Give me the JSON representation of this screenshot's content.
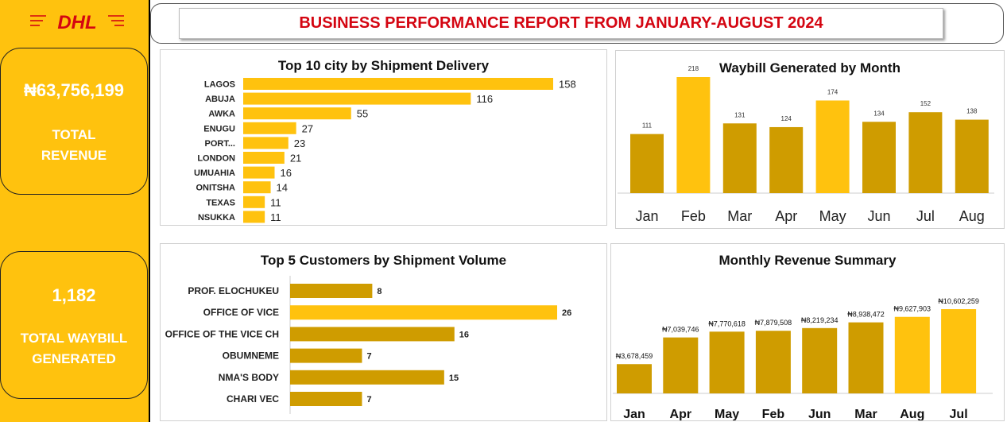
{
  "brand": {
    "logo_text": "DHL"
  },
  "header": {
    "title": "BUSINESS PERFORMANCE REPORT FROM JANUARY-AUGUST 2024"
  },
  "kpis": {
    "revenue_value": "₦63,756,199",
    "revenue_label_1": "TOTAL",
    "revenue_label_2": "REVENUE",
    "waybill_value": "1,182",
    "waybill_label_1": "TOTAL WAYBILL",
    "waybill_label_2": "GENERATED"
  },
  "colors": {
    "gold": "#FFC20E",
    "dark_gold": "#CF9C00",
    "red": "#D40511"
  },
  "chart_data": [
    {
      "id": "cities",
      "type": "bar",
      "orientation": "horizontal",
      "title": "Top 10 city by Shipment Delivery",
      "categories": [
        "LAGOS",
        "ABUJA",
        "AWKA",
        "ENUGU",
        "PORT...",
        "LONDON",
        "UMUAHIA",
        "ONITSHA",
        "TEXAS",
        "NSUKKA"
      ],
      "values": [
        158,
        116,
        55,
        27,
        23,
        21,
        16,
        14,
        11,
        11
      ],
      "labels": [
        "158",
        "116",
        "55",
        "27",
        "23",
        "21",
        "16",
        "14",
        "11",
        "11"
      ],
      "bar_color": "#FFC20E"
    },
    {
      "id": "waybill",
      "type": "bar",
      "title": "Waybill Generated by Month",
      "categories": [
        "Jan",
        "Feb",
        "Mar",
        "Apr",
        "May",
        "Jun",
        "Jul",
        "Aug"
      ],
      "values": [
        111,
        218,
        131,
        124,
        174,
        134,
        152,
        138
      ],
      "labels": [
        "111",
        "218",
        "131",
        "124",
        "174",
        "134",
        "152",
        "138"
      ],
      "highlight": [
        false,
        true,
        false,
        false,
        true,
        false,
        false,
        false
      ]
    },
    {
      "id": "customers",
      "type": "bar",
      "orientation": "horizontal",
      "title": "Top 5 Customers by Shipment Volume",
      "categories": [
        "PROF. ELOCHUKEU",
        "OFFICE OF VICE",
        "OFFICE OF THE VICE CH",
        "OBUMNEME",
        "NMA'S BODY",
        "CHARI VEC"
      ],
      "values": [
        8,
        26,
        16,
        7,
        15,
        7
      ],
      "labels": [
        "8",
        "26",
        "16",
        "7",
        "15",
        "7"
      ],
      "highlight": [
        false,
        true,
        false,
        false,
        false,
        false
      ]
    },
    {
      "id": "revenue",
      "type": "bar",
      "title": "Monthly Revenue Summary",
      "categories": [
        "Jan",
        "Apr",
        "May",
        "Feb",
        "Jun",
        "Mar",
        "Aug",
        "Jul"
      ],
      "values": [
        3678459,
        7039746,
        7770618,
        7879508,
        8219234,
        8938472,
        9627903,
        10602259
      ],
      "labels": [
        "₦3,678,459",
        "₦7,039,746",
        "₦7,770,618",
        "₦7,879,508",
        "₦8,219,234",
        "₦8,938,472",
        "₦9,627,903",
        "₦10,602,259"
      ],
      "highlight": [
        false,
        false,
        false,
        false,
        false,
        false,
        true,
        true
      ]
    }
  ]
}
